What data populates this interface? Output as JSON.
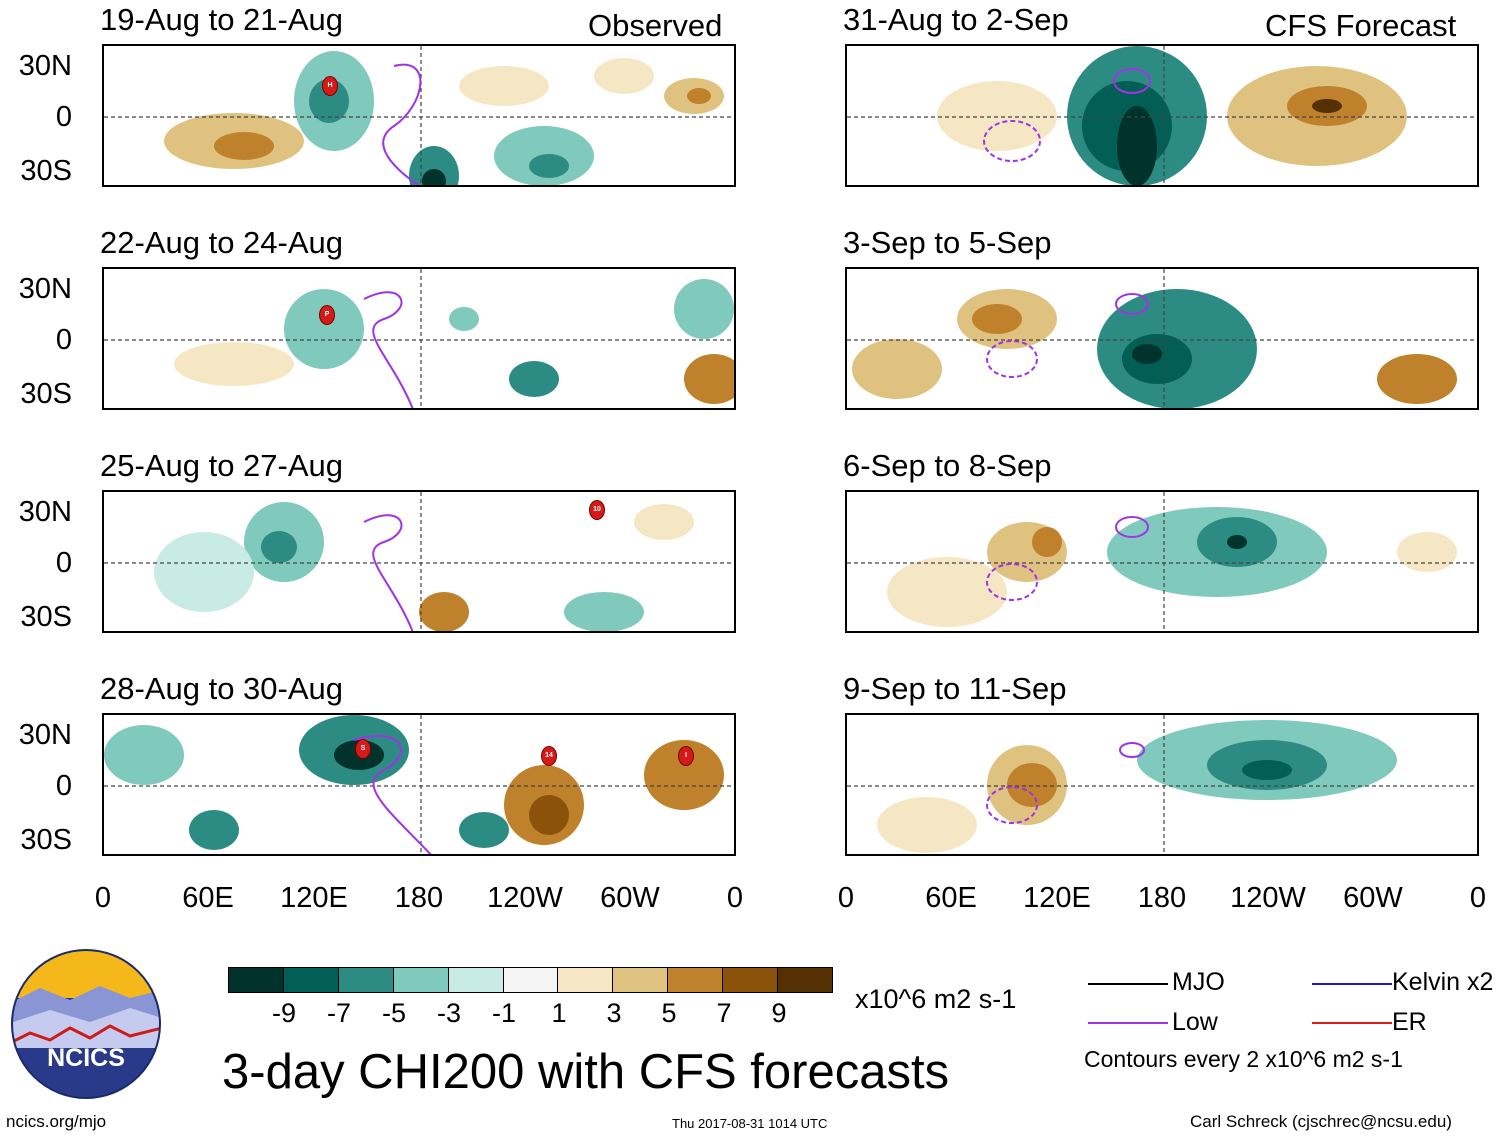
{
  "observed_label": "Observed",
  "forecast_label": "CFS Forecast",
  "lat_labels": [
    "30N",
    "0",
    "30S"
  ],
  "lon_labels": [
    "0",
    "60E",
    "120E",
    "180",
    "120W",
    "60W",
    "0"
  ],
  "panels_left": [
    {
      "title": "19-Aug to 21-Aug",
      "storms": [
        "H"
      ]
    },
    {
      "title": "22-Aug to 24-Aug",
      "storms": [
        "P"
      ]
    },
    {
      "title": "25-Aug to 27-Aug",
      "storms": [
        "10"
      ]
    },
    {
      "title": "28-Aug to 30-Aug",
      "storms": [
        "S",
        "14",
        "I"
      ]
    }
  ],
  "panels_right": [
    {
      "title": "31-Aug to 2-Sep"
    },
    {
      "title": "3-Sep to 5-Sep"
    },
    {
      "title": "6-Sep to 8-Sep"
    },
    {
      "title": "9-Sep to 11-Sep"
    }
  ],
  "colorbar": {
    "colors": [
      "#01332c",
      "#015f55",
      "#2c8c83",
      "#7fc9bd",
      "#c9ebe6",
      "#f5f5f5",
      "#f6e7c4",
      "#dfc27f",
      "#bf812c",
      "#8b520a",
      "#553005"
    ],
    "ticks": [
      "-9",
      "-7",
      "-5",
      "-3",
      "-1",
      "1",
      "3",
      "5",
      "7",
      "9"
    ],
    "units": "x10^6 m2 s-1"
  },
  "main_title": "3-day CHI200 with CFS forecasts",
  "legend": {
    "mjo": "MJO",
    "low": "Low",
    "kelvin": "Kelvin x2",
    "er": "ER",
    "note": "Contours every 2 x10^6 m2 s-1",
    "colors": {
      "mjo": "#000000",
      "low": "#a033e5",
      "kelvin": "#1a1ad6",
      "er": "#e01a1a"
    }
  },
  "logo_text": "NCICS",
  "footer": {
    "left": "ncics.org/mjo",
    "center": "Thu 2017-08-31 1014 UTC",
    "right": "Carl Schreck (cjschrec@ncsu.edu)"
  }
}
